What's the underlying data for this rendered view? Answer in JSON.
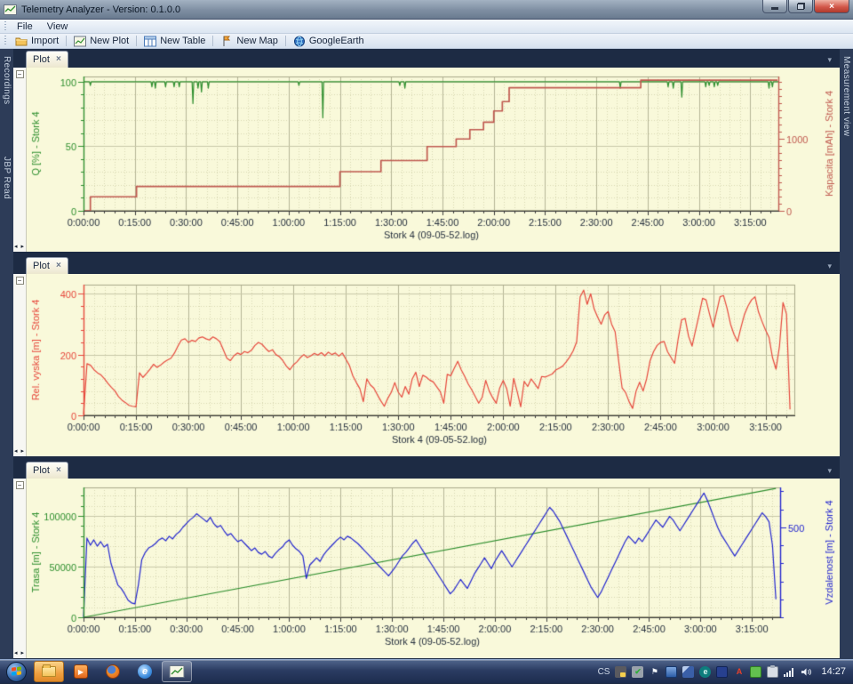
{
  "window": {
    "title": "Telemetry Analyzer - Version: 0.1.0.0"
  },
  "menu_bar": {
    "items": [
      {
        "label": "File"
      },
      {
        "label": "View"
      }
    ]
  },
  "toolbar": {
    "items": [
      {
        "label": "Import",
        "icon": "folder-icon"
      },
      {
        "label": "New Plot",
        "icon": "chart-icon"
      },
      {
        "label": "New Table",
        "icon": "table-icon"
      },
      {
        "label": "New Map",
        "icon": "flag-icon"
      },
      {
        "label": "GoogleEarth",
        "icon": "globe-icon"
      }
    ]
  },
  "left_dock": {
    "items": [
      {
        "label": "Recordings"
      },
      {
        "label": "JBP Read"
      }
    ]
  },
  "right_dock": {
    "items": [
      {
        "label": "Measurement view"
      }
    ]
  },
  "panels": [
    {
      "tab_label": "Plot"
    },
    {
      "tab_label": "Plot"
    },
    {
      "tab_label": "Plot"
    }
  ],
  "glyphs": {
    "close": "×",
    "dropdown": "▾",
    "collapse": "−",
    "scroll_arrows": "◂ ▸",
    "minimize": "",
    "play": "▶",
    "check": "✔",
    "flag": "⚑",
    "eset": "e",
    "antivirus": "A",
    "ie": "e"
  },
  "taskbar": {
    "language": "CS",
    "clock": "14:27",
    "apps": [
      "windows-explorer",
      "media-player",
      "firefox",
      "internet-explorer",
      "telemetry-analyzer"
    ]
  },
  "colors": {
    "panel_bg": "#f9f9da",
    "green": "#2f8f2f",
    "kapacita_red": "#c05a50",
    "vyska_red": "#e6483c",
    "blue": "#2326cf",
    "grid_minor": "#d7d7b2",
    "grid_major_v": "#b5b596",
    "grid_major_h": "#c8c8a8",
    "axis_dark": "#3a3a3a",
    "tick_text": "#26303e"
  },
  "chart_data": [
    {
      "type": "line",
      "xlabel": "Stork 4 (09-05-52.log)",
      "x_range_min": [
        0,
        203.5
      ],
      "x_major_step_min": 15,
      "x_minor_step_min": 3,
      "x_tick_labels": [
        "0:00:00",
        "0:15:00",
        "0:30:00",
        "0:45:00",
        "1:00:00",
        "1:15:00",
        "1:30:00",
        "1:45:00",
        "2:00:00",
        "2:15:00",
        "2:30:00",
        "2:45:00",
        "3:00:00",
        "3:15:00"
      ],
      "left_axis": {
        "label": "Q [%] - Stork 4",
        "color": "#2f8f2f",
        "range": [
          0,
          104
        ],
        "major_ticks": [
          0,
          50,
          100
        ],
        "minor_step": 10
      },
      "right_axis": {
        "label": "Kapacita [mAh] - Stork 4",
        "color": "#c05a50",
        "range": [
          0,
          1870
        ],
        "major_ticks": [
          0,
          1000
        ],
        "minor_step": 100
      },
      "layout": {
        "margins": {
          "l": 64,
          "r": 68,
          "t": 10,
          "b": 46
        },
        "grid": true,
        "legend": "none"
      },
      "series": [
        {
          "name": "Q [%] - Stork 4",
          "axis": "left",
          "color": "#2f8f2f",
          "mode": "baseline-spikes",
          "baseline": 100,
          "spike_halfwidth_min": 0.25,
          "spikes": [
            [
              2,
              97
            ],
            [
              20,
              96
            ],
            [
              21,
              95
            ],
            [
              24,
              96
            ],
            [
              26.5,
              96
            ],
            [
              28,
              96
            ],
            [
              32,
              83
            ],
            [
              33.5,
              95
            ],
            [
              34.5,
              92
            ],
            [
              36.5,
              95
            ],
            [
              63,
              97
            ],
            [
              70,
              72
            ],
            [
              92.5,
              97
            ],
            [
              94,
              95
            ],
            [
              157,
              95
            ],
            [
              171,
              96
            ],
            [
              172.5,
              95
            ],
            [
              175,
              88
            ],
            [
              182,
              96
            ],
            [
              183,
              97
            ],
            [
              184.5,
              96
            ],
            [
              185.5,
              97
            ],
            [
              200.5,
              95
            ],
            [
              201.5,
              96
            ]
          ]
        },
        {
          "name": "Kapacita [mAh] - Stork 4",
          "axis": "right",
          "color": "#c05a50",
          "mode": "points",
          "width": 1.7,
          "points": [
            [
              0,
              0
            ],
            [
              2,
              0
            ],
            [
              2,
              195
            ],
            [
              15.5,
              195
            ],
            [
              15.5,
              340
            ],
            [
              75,
              340
            ],
            [
              75,
              545
            ],
            [
              87,
              545
            ],
            [
              87,
              700
            ],
            [
              100.5,
              700
            ],
            [
              100.5,
              895
            ],
            [
              109,
              895
            ],
            [
              109,
              1000
            ],
            [
              113,
              1000
            ],
            [
              113,
              1130
            ],
            [
              117,
              1130
            ],
            [
              117,
              1235
            ],
            [
              120,
              1235
            ],
            [
              120,
              1390
            ],
            [
              122.5,
              1390
            ],
            [
              122.5,
              1520
            ],
            [
              124.5,
              1520
            ],
            [
              124.5,
              1714
            ],
            [
              163,
              1714
            ],
            [
              163,
              1820
            ],
            [
              203,
              1820
            ]
          ]
        }
      ]
    },
    {
      "type": "line",
      "xlabel": "Stork 4 (09-05-52.log)",
      "x_range_min": [
        0,
        203.5
      ],
      "x_major_step_min": 15,
      "x_minor_step_min": 3,
      "x_tick_labels": [
        "0:00:00",
        "0:15:00",
        "0:30:00",
        "0:45:00",
        "1:00:00",
        "1:15:00",
        "1:30:00",
        "1:45:00",
        "2:00:00",
        "2:15:00",
        "2:30:00",
        "2:45:00",
        "3:00:00",
        "3:15:00"
      ],
      "left_axis": {
        "label": "Rel. vyska [m] - Stork 4",
        "color": "#e6483c",
        "range": [
          0,
          430
        ],
        "major_ticks": [
          0,
          200,
          400
        ],
        "minor_step": 40
      },
      "layout": {
        "margins": {
          "l": 64,
          "r": 50,
          "t": 12,
          "b": 46
        },
        "grid": true,
        "legend": "none"
      },
      "series": [
        {
          "name": "Rel. vyska [m] - Stork 4",
          "axis": "left",
          "color": "#e6483c",
          "mode": "sampled",
          "x0_min": 0,
          "dx_min": 1,
          "values": [
            2,
            170,
            165,
            150,
            140,
            133,
            120,
            105,
            92,
            80,
            62,
            50,
            42,
            33,
            30,
            28,
            140,
            125,
            138,
            152,
            168,
            158,
            165,
            175,
            182,
            188,
            205,
            228,
            248,
            252,
            240,
            247,
            243,
            255,
            258,
            252,
            248,
            258,
            252,
            242,
            215,
            188,
            180,
            196,
            205,
            200,
            210,
            206,
            214,
            230,
            240,
            234,
            221,
            210,
            216,
            200,
            193,
            180,
            162,
            150,
            166,
            176,
            190,
            200,
            190,
            196,
            204,
            198,
            206,
            196,
            208,
            200,
            205,
            195,
            205,
            185,
            165,
            130,
            108,
            88,
            45,
            120,
            100,
            90,
            68,
            48,
            30,
            56,
            76,
            108,
            76,
            60,
            95,
            70,
            120,
            142,
            95,
            132,
            126,
            116,
            110,
            94,
            78,
            40,
            135,
            130,
            155,
            178,
            150,
            128,
            103,
            84,
            62,
            40,
            60,
            115,
            80,
            58,
            40,
            90,
            115,
            88,
            30,
            122,
            78,
            28,
            112,
            95,
            120,
            104,
            88,
            128,
            126,
            131,
            136,
            149,
            155,
            162,
            176,
            192,
            212,
            242,
            390,
            412,
            365,
            400,
            350,
            323,
            300,
            330,
            342,
            300,
            275,
            180,
            90,
            75,
            45,
            23,
            80,
            109,
            80,
            120,
            180,
            210,
            230,
            240,
            243,
            209,
            190,
            171,
            250,
            314,
            319,
            260,
            228,
            280,
            330,
            385,
            380,
            333,
            290,
            340,
            390,
            394,
            352,
            300,
            266,
            243,
            290,
            333,
            360,
            380,
            390,
            340,
            309,
            281,
            257,
            190,
            152,
            228,
            371,
            333,
            20
          ]
        }
      ]
    },
    {
      "type": "line",
      "xlabel": "Stork 4 (09-05-52.log)",
      "x_range_min": [
        0,
        203.5
      ],
      "x_major_step_min": 15,
      "x_minor_step_min": 3,
      "x_tick_labels": [
        "0:00:00",
        "0:15:00",
        "0:30:00",
        "0:45:00",
        "1:00:00",
        "1:15:00",
        "1:30:00",
        "1:45:00",
        "2:00:00",
        "2:15:00",
        "2:30:00",
        "2:45:00",
        "3:00:00",
        "3:15:00"
      ],
      "left_axis": {
        "label": "Trasa [m] - Stork 4",
        "color": "#2f8f2f",
        "range": [
          0,
          128000
        ],
        "major_ticks": [
          0,
          50000,
          100000
        ],
        "minor_step": 10000
      },
      "right_axis": {
        "label": "Vzdalenost [m] - Stork 4",
        "color": "#2326cf",
        "range": [
          0,
          721
        ],
        "major_ticks": [
          500
        ],
        "minor_step": 100
      },
      "layout": {
        "margins": {
          "l": 64,
          "r": 66,
          "t": 10,
          "b": 46
        },
        "grid": true,
        "legend": "none"
      },
      "series": [
        {
          "name": "Trasa [m] - Stork 4",
          "axis": "left",
          "color": "#2f8f2f",
          "mode": "points",
          "points": [
            [
              0,
              0
            ],
            [
              202,
              127000
            ]
          ]
        },
        {
          "name": "Vzdalenost [m] - Stork 4",
          "axis": "right",
          "color": "#2326cf",
          "mode": "sampled",
          "x0_min": 0,
          "dx_min": 1,
          "values": [
            0,
            440,
            400,
            430,
            395,
            420,
            390,
            405,
            300,
            240,
            180,
            160,
            130,
            95,
            80,
            75,
            180,
            320,
            360,
            385,
            395,
            410,
            430,
            440,
            425,
            450,
            435,
            460,
            475,
            500,
            520,
            540,
            555,
            575,
            560,
            545,
            530,
            555,
            520,
            500,
            510,
            480,
            455,
            465,
            440,
            420,
            430,
            410,
            390,
            370,
            385,
            360,
            350,
            365,
            340,
            330,
            355,
            375,
            390,
            415,
            430,
            400,
            380,
            365,
            340,
            215,
            290,
            310,
            330,
            310,
            345,
            370,
            390,
            410,
            430,
            445,
            430,
            450,
            440,
            425,
            410,
            390,
            370,
            350,
            330,
            310,
            290,
            270,
            250,
            230,
            255,
            280,
            310,
            340,
            360,
            385,
            410,
            430,
            400,
            370,
            340,
            310,
            280,
            250,
            220,
            190,
            160,
            130,
            150,
            180,
            210,
            185,
            160,
            200,
            240,
            270,
            300,
            330,
            300,
            270,
            310,
            340,
            370,
            340,
            310,
            280,
            310,
            340,
            370,
            400,
            430,
            460,
            490,
            520,
            550,
            580,
            610,
            590,
            560,
            530,
            490,
            450,
            410,
            370,
            330,
            290,
            250,
            210,
            170,
            140,
            110,
            140,
            180,
            220,
            260,
            300,
            340,
            380,
            420,
            450,
            430,
            410,
            440,
            420,
            450,
            480,
            510,
            540,
            520,
            500,
            530,
            560,
            540,
            510,
            480,
            510,
            540,
            570,
            600,
            630,
            660,
            690,
            650,
            600,
            550,
            500,
            460,
            430,
            400,
            370,
            340,
            370,
            400,
            430,
            460,
            490,
            520,
            550,
            580,
            560,
            530,
            400,
            100
          ]
        }
      ]
    }
  ]
}
